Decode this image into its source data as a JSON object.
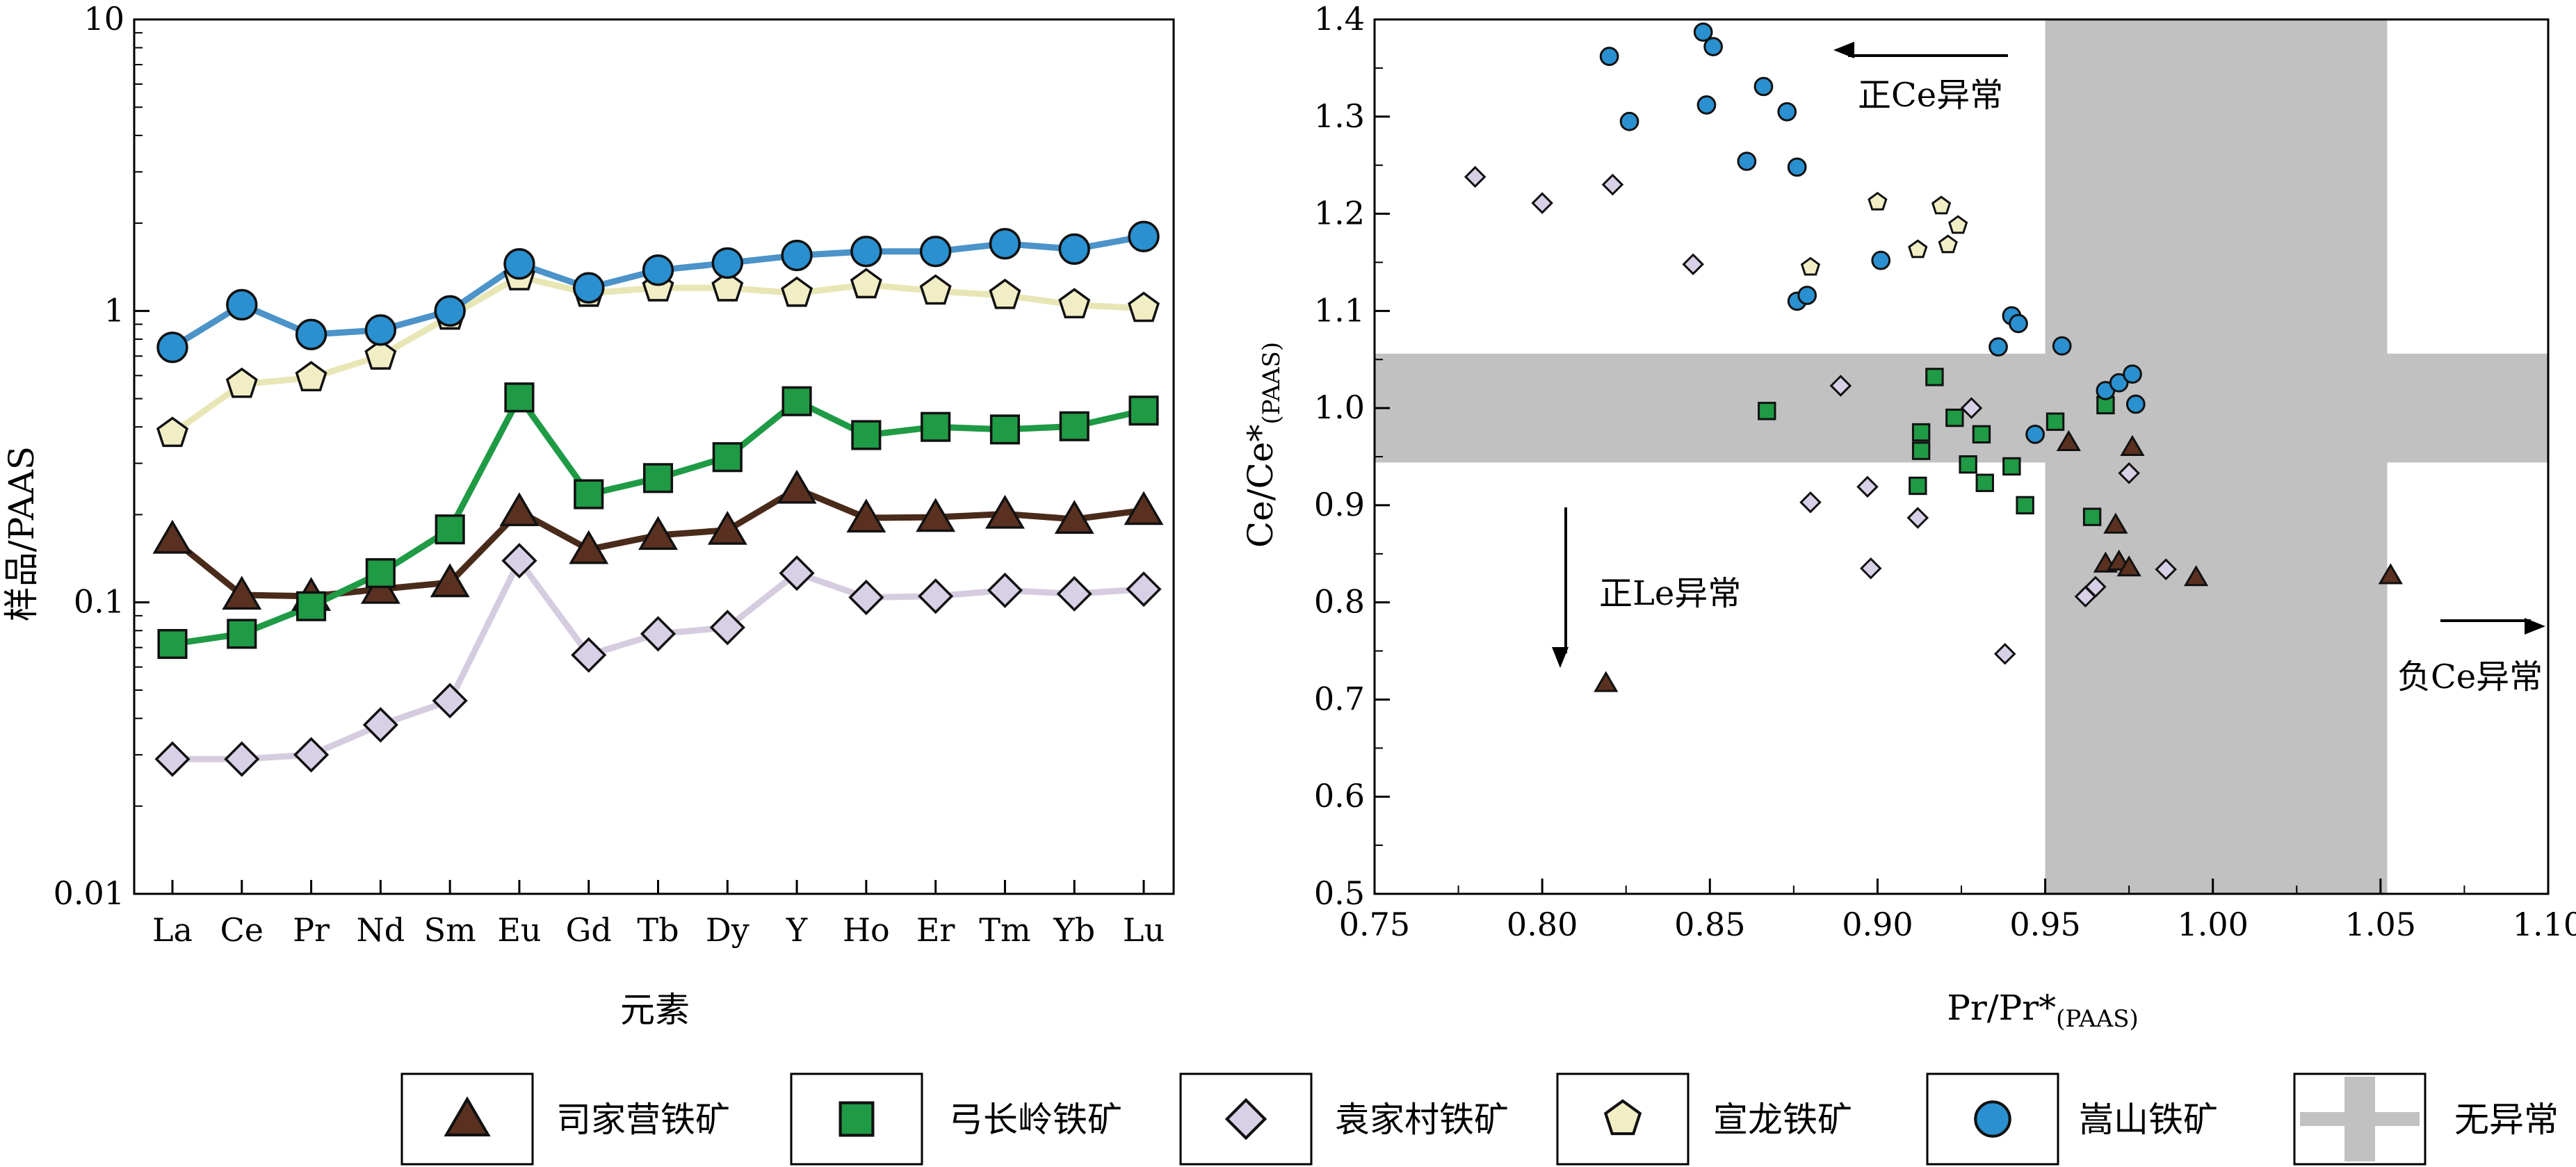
{
  "chart_data": [
    {
      "type": "line",
      "y_scale": "log",
      "ylim": [
        0.01,
        10
      ],
      "ylabel": "样品/PAAS",
      "xlabel": "元素",
      "yticks": [
        "0.01",
        "0.1",
        "1",
        "10"
      ],
      "categories": [
        "La",
        "Ce",
        "Pr",
        "Nd",
        "Sm",
        "Eu",
        "Gd",
        "Tb",
        "Dy",
        "Y",
        "Ho",
        "Er",
        "Tm",
        "Yb",
        "Lu"
      ],
      "series": [
        {
          "name": "司家营铁矿",
          "marker": "triangle",
          "fill": "#5a3120",
          "line": "#4a2a1a",
          "values": [
            0.165,
            0.106,
            0.105,
            0.111,
            0.117,
            0.205,
            0.152,
            0.17,
            0.177,
            0.245,
            0.195,
            0.196,
            0.201,
            0.193,
            0.207
          ]
        },
        {
          "name": "弓长岭铁矿",
          "marker": "square",
          "fill": "#1f9a45",
          "line": "#1f9a45",
          "values": [
            0.072,
            0.078,
            0.097,
            0.126,
            0.178,
            0.505,
            0.235,
            0.267,
            0.315,
            0.49,
            0.375,
            0.4,
            0.392,
            0.402,
            0.455
          ]
        },
        {
          "name": "袁家村铁矿",
          "marker": "diamond",
          "fill": "#d8d0e6",
          "line": "#d6cce0",
          "values": [
            0.029,
            0.029,
            0.03,
            0.038,
            0.046,
            0.139,
            0.066,
            0.078,
            0.082,
            0.126,
            0.104,
            0.105,
            0.11,
            0.107,
            0.111
          ]
        },
        {
          "name": "宣龙铁矿",
          "marker": "pentagon",
          "fill": "#f1eec6",
          "line": "#e9e6b6",
          "values": [
            0.38,
            0.56,
            0.59,
            0.7,
            0.96,
            1.31,
            1.15,
            1.2,
            1.2,
            1.15,
            1.23,
            1.17,
            1.13,
            1.05,
            1.02
          ]
        },
        {
          "name": "嵩山铁矿",
          "marker": "circle",
          "fill": "#2a90d0",
          "line": "#4b93c9",
          "values": [
            0.75,
            1.05,
            0.83,
            0.86,
            1.0,
            1.45,
            1.2,
            1.38,
            1.46,
            1.55,
            1.6,
            1.6,
            1.7,
            1.63,
            1.8
          ]
        }
      ]
    },
    {
      "type": "scatter",
      "xlabel": "Pr/Pr*",
      "xlabel_sub": "(PAAS)",
      "ylabel": "Ce/Ce*",
      "ylabel_sub": "(PAAS)",
      "xlim": [
        0.75,
        1.1
      ],
      "ylim": [
        0.5,
        1.4
      ],
      "xticks": [
        "0.75",
        "0.80",
        "0.85",
        "0.90",
        "0.95",
        "1.00",
        "1.05",
        "1.10"
      ],
      "yticks": [
        "0.5",
        "0.6",
        "0.7",
        "0.8",
        "0.9",
        "1.0",
        "1.1",
        "1.2",
        "1.3",
        "1.4"
      ],
      "bands": [
        {
          "axis": "y",
          "range": [
            0.944,
            1.056
          ],
          "color": "#c1c1c1"
        },
        {
          "axis": "x",
          "range": [
            0.95,
            1.052
          ],
          "color": "#c1c1c1"
        }
      ],
      "annotations": [
        {
          "text": "正Ce异常",
          "direction": "left"
        },
        {
          "text": "正Le异常",
          "direction": "down"
        },
        {
          "text": "负Ce异常",
          "direction": "right"
        }
      ],
      "series": [
        {
          "name": "司家营铁矿",
          "marker": "triangle",
          "fill": "#5a3120",
          "points": [
            [
              0.819,
              0.717
            ],
            [
              0.957,
              0.965
            ],
            [
              0.976,
              0.96
            ],
            [
              0.968,
              0.84
            ],
            [
              0.971,
              0.88
            ],
            [
              0.972,
              0.842
            ],
            [
              0.975,
              0.836
            ],
            [
              0.995,
              0.826
            ],
            [
              1.053,
              0.828
            ]
          ]
        },
        {
          "name": "弓长岭铁矿",
          "marker": "square",
          "fill": "#1f9a45",
          "points": [
            [
              0.867,
              0.997
            ],
            [
              0.912,
              0.92
            ],
            [
              0.913,
              0.975
            ],
            [
              0.913,
              0.956
            ],
            [
              0.917,
              1.032
            ],
            [
              0.923,
              0.99
            ],
            [
              0.927,
              0.942
            ],
            [
              0.931,
              0.973
            ],
            [
              0.932,
              0.923
            ],
            [
              0.94,
              0.94
            ],
            [
              0.944,
              0.9
            ],
            [
              0.953,
              0.986
            ],
            [
              0.964,
              0.888
            ],
            [
              0.968,
              1.003
            ]
          ]
        },
        {
          "name": "袁家村铁矿",
          "marker": "diamond",
          "fill": "#d8d0e6",
          "points": [
            [
              0.78,
              1.238
            ],
            [
              0.8,
              1.211
            ],
            [
              0.821,
              1.23
            ],
            [
              0.845,
              1.148
            ],
            [
              0.88,
              0.903
            ],
            [
              0.889,
              1.023
            ],
            [
              0.897,
              0.919
            ],
            [
              0.898,
              0.835
            ],
            [
              0.912,
              0.887
            ],
            [
              0.928,
              1.0
            ],
            [
              0.938,
              0.747
            ],
            [
              0.962,
              0.806
            ],
            [
              0.965,
              0.816
            ],
            [
              0.975,
              0.933
            ],
            [
              0.986,
              0.834
            ]
          ]
        },
        {
          "name": "宣龙铁矿",
          "marker": "pentagon",
          "fill": "#f1eec6",
          "points": [
            [
              0.88,
              1.145
            ],
            [
              0.9,
              1.212
            ],
            [
              0.912,
              1.163
            ],
            [
              0.919,
              1.208
            ],
            [
              0.921,
              1.168
            ],
            [
              0.924,
              1.188
            ]
          ]
        },
        {
          "name": "嵩山铁矿",
          "marker": "circle",
          "fill": "#2a90d0",
          "points": [
            [
              0.82,
              1.362
            ],
            [
              0.826,
              1.295
            ],
            [
              0.848,
              1.387
            ],
            [
              0.849,
              1.312
            ],
            [
              0.851,
              1.372
            ],
            [
              0.861,
              1.254
            ],
            [
              0.866,
              1.331
            ],
            [
              0.873,
              1.305
            ],
            [
              0.876,
              1.248
            ],
            [
              0.876,
              1.11
            ],
            [
              0.879,
              1.116
            ],
            [
              0.901,
              1.152
            ],
            [
              0.936,
              1.063
            ],
            [
              0.94,
              1.095
            ],
            [
              0.942,
              1.087
            ],
            [
              0.947,
              0.973
            ],
            [
              0.955,
              1.064
            ],
            [
              0.968,
              1.018
            ],
            [
              0.972,
              1.026
            ],
            [
              0.976,
              1.035
            ],
            [
              0.977,
              1.004
            ]
          ]
        }
      ]
    }
  ],
  "legend": {
    "items": [
      {
        "label": "司家营铁矿",
        "marker": "triangle",
        "fill": "#5a3120"
      },
      {
        "label": "弓长岭铁矿",
        "marker": "square",
        "fill": "#1f9a45"
      },
      {
        "label": "袁家村铁矿",
        "marker": "diamond",
        "fill": "#d8d0e6"
      },
      {
        "label": "宣龙铁矿",
        "marker": "pentagon",
        "fill": "#f1eec6"
      },
      {
        "label": "嵩山铁矿",
        "marker": "circle",
        "fill": "#2a90d0"
      },
      {
        "label": "无异常",
        "marker": "cross-band",
        "fill": "#c1c1c1"
      }
    ]
  }
}
